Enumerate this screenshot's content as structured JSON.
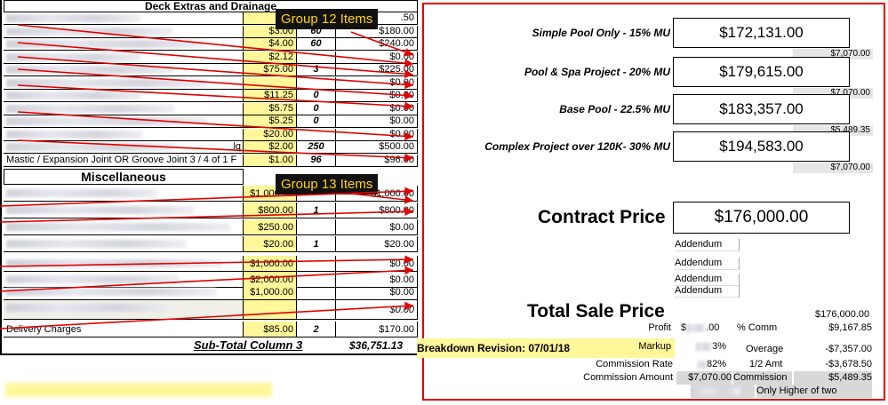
{
  "left_table": {
    "deck_header": "Deck Extras and Drainage",
    "deck_rows": [
      {
        "price": "$7",
        "qty": "",
        "total": ".50"
      },
      {
        "price": "$3.00",
        "qty": "60",
        "total": "$180.00"
      },
      {
        "price": "$4.00",
        "qty": "60",
        "total": "$240.00"
      },
      {
        "price": "$2.12",
        "qty": "",
        "total": "$0.00"
      },
      {
        "price": "$75.00",
        "qty": "3",
        "total": "$225.00"
      },
      {
        "price": "",
        "qty": "",
        "total": "$0.00"
      },
      {
        "price": "$11.25",
        "qty": "0",
        "total": "$0.00"
      },
      {
        "price": "$5.75",
        "qty": "0",
        "total": "$0.00"
      },
      {
        "price": "$5.25",
        "qty": "0",
        "total": "$0.00"
      },
      {
        "price": "$20.00",
        "qty": "",
        "total": "$0.00"
      },
      {
        "price": "$2.00",
        "qty": "250",
        "total": "$500.00"
      },
      {
        "price": "$1.00",
        "qty": "96",
        "total": "$96.00"
      }
    ],
    "deck_last_desc": "Mastic / Expansion Joint OR Groove Joint 3 / 4 of 1 F",
    "row11_suffix": "lq",
    "misc_header": "Miscellaneous",
    "misc_rows": [
      {
        "price": "$1,000.00",
        "qty": "",
        "total": "$1,000.00"
      },
      {
        "price": "$800.00",
        "qty": "1",
        "total": "$800.00"
      },
      {
        "price": "$250.00",
        "qty": "",
        "total": "$0.00"
      },
      {
        "price": "$20.00",
        "qty": "1",
        "total": "$20.00"
      },
      {
        "price": "$1,000.00",
        "qty": "",
        "total": "$0.00"
      },
      {
        "price": "$2,000.00",
        "qty": "",
        "total": "$0.00"
      },
      {
        "price": "$1,000.00",
        "qty": "",
        "total": "$0.00"
      },
      {
        "price": "",
        "qty": "",
        "total": "$0.00"
      },
      {
        "price": "$85.00",
        "qty": "2",
        "total": "$170.00"
      }
    ],
    "misc_last_desc": "Delivery Charges",
    "subtotal_label": "Sub-Total Column 3",
    "subtotal_value": "$36,751.13",
    "revision_label": "Breakdown Revision: 07/01/18"
  },
  "callouts": {
    "group12": "Group 12 Items",
    "group13": "Group 13 Items"
  },
  "pricing": {
    "rows": [
      {
        "label": "Simple Pool Only - 15% MU",
        "value": "$172,131.00",
        "sub": "$7,070.00"
      },
      {
        "label": "Pool & Spa Project - 20% MU",
        "value": "$179,615.00",
        "sub": "$7,070.00"
      },
      {
        "label": "Base Pool - 22.5% MU",
        "value": "$183,357.00",
        "sub": "$5,489.35"
      },
      {
        "label": "Complex Project over 120K- 30% MU",
        "value": "$194,583.00",
        "sub": "$7,070.00"
      }
    ],
    "contract_label": "Contract Price",
    "contract_value": "$176,000.00",
    "addendum": [
      "Addendum",
      "Addendum",
      "Addendum",
      "Addendum"
    ],
    "total_label": "Total Sale Price",
    "total_value": "$176,000.00"
  },
  "bottom": {
    "profit_label": "Profit",
    "profit_amt": ".00",
    "comm_pct": "% Comm",
    "comm_val": "$9,167.85",
    "markup_label": "Markup",
    "markup_pct": "3%",
    "overage_label": "Overage",
    "overage_val": "-$7,357.00",
    "rate_label": "Commission Rate",
    "rate_val": "82%",
    "half_label": "1/2 Amt",
    "half_val": "-$3,678.50",
    "amount_label": "Commission Amount",
    "amount_val": "$7,070.00",
    "commission_label": "Commission",
    "commission_val": "$5,489.35",
    "only_higher": "Only Higher of two"
  },
  "colors": {
    "highlight": "#fff799",
    "frame": "#e00000",
    "callout_bg": "#111111",
    "callout_fg": "#ffd200"
  }
}
